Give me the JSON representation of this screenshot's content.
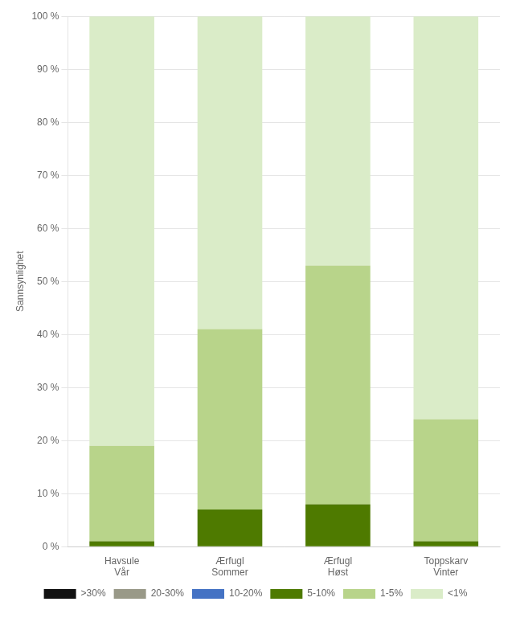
{
  "chart_data": {
    "type": "bar",
    "stacked": true,
    "categories": [
      [
        "Havsule",
        "Vår"
      ],
      [
        "Ærfugl",
        "Sommer"
      ],
      [
        "Ærfugl",
        "Høst"
      ],
      [
        "Toppskarv",
        "Vinter"
      ]
    ],
    "series": [
      {
        "name": ">30%",
        "color": "#111111",
        "values": [
          0,
          0,
          0,
          0
        ]
      },
      {
        "name": "20-30%",
        "color": "#999988",
        "values": [
          0,
          0,
          0,
          0
        ]
      },
      {
        "name": "10-20%",
        "color": "#4472c4",
        "values": [
          0,
          0,
          0,
          0
        ]
      },
      {
        "name": "5-10%",
        "color": "#4e7a00",
        "values": [
          1,
          7,
          8,
          1
        ]
      },
      {
        "name": "1-5%",
        "color": "#b8d48a",
        "values": [
          18,
          34,
          45,
          23
        ]
      },
      {
        "name": "<1%",
        "color": "#daecc8",
        "values": [
          81,
          59,
          47,
          76
        ]
      }
    ],
    "y_label": "Sannsynlighet",
    "ylim": [
      0,
      100
    ],
    "yticks": [
      {
        "value": 0,
        "label": "0 %"
      },
      {
        "value": 10,
        "label": "10 %"
      },
      {
        "value": 20,
        "label": "20 %"
      },
      {
        "value": 30,
        "label": "30 %"
      },
      {
        "value": 40,
        "label": "40 %"
      },
      {
        "value": 50,
        "label": "50 %"
      },
      {
        "value": 60,
        "label": "60 %"
      },
      {
        "value": 70,
        "label": "70 %"
      },
      {
        "value": 80,
        "label": "80 %"
      },
      {
        "value": 90,
        "label": "90 %"
      },
      {
        "value": 100,
        "label": "100 %"
      }
    ],
    "grid": true,
    "legend": "bottom"
  }
}
